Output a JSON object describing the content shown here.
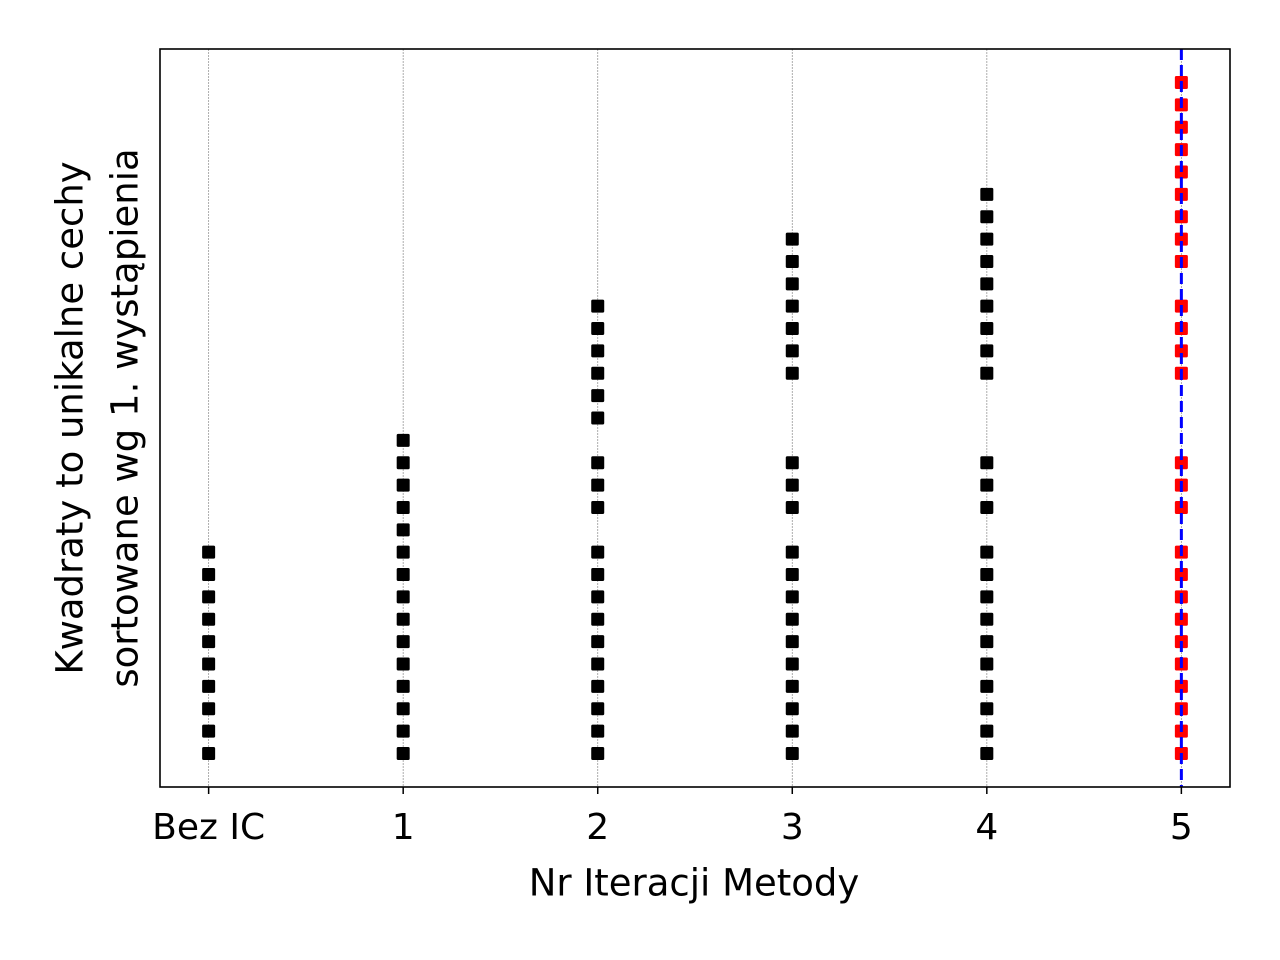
{
  "chart_data": {
    "type": "scatter",
    "xlabel": "Nr Iteracji Metody",
    "ylabel": [
      "Kwadraty to unikalne cechy",
      "sortowane wg 1. wystąpienia"
    ],
    "categories": [
      "Bez IC",
      "1",
      "2",
      "3",
      "4",
      "5"
    ],
    "columns": [
      {
        "color": "#000000",
        "values": [
          0,
          1,
          2,
          3,
          4,
          5,
          6,
          7,
          8,
          9
        ]
      },
      {
        "color": "#000000",
        "values": [
          0,
          1,
          2,
          3,
          4,
          5,
          6,
          7,
          8,
          9,
          10,
          11,
          12,
          13,
          14
        ]
      },
      {
        "color": "#000000",
        "values": [
          0,
          1,
          2,
          3,
          4,
          5,
          6,
          7,
          8,
          9,
          11,
          12,
          13,
          15,
          16,
          17,
          18,
          19,
          20
        ]
      },
      {
        "color": "#000000",
        "values": [
          0,
          1,
          2,
          3,
          4,
          5,
          6,
          7,
          8,
          9,
          11,
          12,
          13,
          17,
          18,
          19,
          20,
          21,
          22,
          23
        ]
      },
      {
        "color": "#000000",
        "values": [
          0,
          1,
          2,
          3,
          4,
          5,
          6,
          7,
          8,
          9,
          11,
          12,
          13,
          17,
          18,
          19,
          20,
          21,
          22,
          23,
          24,
          25
        ]
      },
      {
        "color": "#ff0000",
        "values": [
          0,
          1,
          2,
          3,
          4,
          5,
          6,
          7,
          8,
          9,
          11,
          12,
          13,
          17,
          18,
          19,
          20,
          22,
          23,
          24,
          25,
          26,
          27,
          28,
          29,
          30
        ]
      }
    ],
    "ylim": [
      -1.5,
      31.5
    ],
    "grid": true,
    "vline": {
      "index": 5,
      "color": "#0000ff",
      "style": "dashed"
    }
  }
}
